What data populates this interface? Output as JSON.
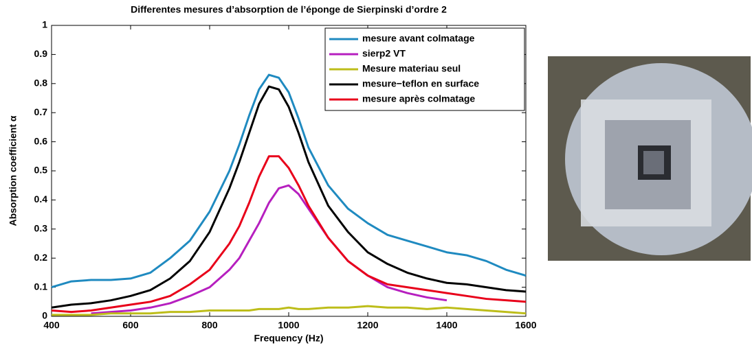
{
  "chart_data": {
    "type": "line",
    "title": "Differentes mesures d’absorption de l’éponge de Sierpinski d’ordre 2",
    "x_label": "Frequency (Hz)",
    "y_label": "Absorption coefficient  α",
    "x": [
      400,
      450,
      500,
      550,
      600,
      650,
      700,
      750,
      800,
      850,
      875,
      900,
      925,
      950,
      975,
      1000,
      1025,
      1050,
      1100,
      1150,
      1200,
      1250,
      1300,
      1350,
      1400,
      1450,
      1500,
      1550,
      1600
    ],
    "series": [
      {
        "name": "mesure avant colmatage",
        "color": "#1f8ac0",
        "values": [
          0.1,
          0.12,
          0.125,
          0.125,
          0.13,
          0.15,
          0.2,
          0.26,
          0.36,
          0.5,
          0.59,
          0.69,
          0.78,
          0.83,
          0.82,
          0.77,
          0.68,
          0.58,
          0.45,
          0.37,
          0.32,
          0.28,
          0.26,
          0.24,
          0.22,
          0.21,
          0.19,
          0.16,
          0.14
        ]
      },
      {
        "name": "sierp2 VT",
        "color": "#b61fbf",
        "values": [
          null,
          null,
          0.01,
          0.015,
          0.02,
          0.03,
          0.045,
          0.07,
          0.1,
          0.16,
          0.2,
          0.26,
          0.32,
          0.39,
          0.44,
          0.45,
          0.42,
          0.37,
          0.27,
          0.19,
          0.14,
          0.1,
          0.08,
          0.065,
          0.055,
          null,
          null,
          null,
          null
        ]
      },
      {
        "name": "Mesure materiau seul",
        "color": "#bdbd1a",
        "values": [
          0.005,
          0.005,
          0.005,
          0.01,
          0.01,
          0.01,
          0.015,
          0.015,
          0.02,
          0.02,
          0.02,
          0.02,
          0.025,
          0.025,
          0.025,
          0.03,
          0.025,
          0.025,
          0.03,
          0.03,
          0.035,
          0.03,
          0.03,
          0.025,
          0.03,
          0.025,
          0.02,
          0.015,
          0.01
        ]
      },
      {
        "name": "mesure−teflon en surface",
        "color": "#000000",
        "values": [
          0.03,
          0.04,
          0.045,
          0.055,
          0.07,
          0.09,
          0.13,
          0.19,
          0.29,
          0.44,
          0.53,
          0.63,
          0.73,
          0.79,
          0.78,
          0.72,
          0.63,
          0.53,
          0.38,
          0.29,
          0.22,
          0.18,
          0.15,
          0.13,
          0.115,
          0.11,
          0.1,
          0.09,
          0.085
        ]
      },
      {
        "name": "mesure après colmatage",
        "color": "#e8001a",
        "values": [
          0.02,
          0.015,
          0.02,
          0.03,
          0.04,
          0.05,
          0.07,
          0.11,
          0.16,
          0.25,
          0.31,
          0.39,
          0.48,
          0.55,
          0.55,
          0.51,
          0.45,
          0.38,
          0.27,
          0.19,
          0.14,
          0.11,
          0.1,
          0.09,
          0.08,
          0.07,
          0.06,
          0.055,
          0.05
        ]
      }
    ],
    "xlim": [
      400,
      1600
    ],
    "xticks": [
      400,
      600,
      800,
      1000,
      1200,
      1400,
      1600
    ],
    "ylim": [
      0,
      1
    ],
    "yticks": [
      0,
      0.1,
      0.2,
      0.3,
      0.4,
      0.5,
      0.6,
      0.7,
      0.8,
      0.9,
      1
    ],
    "legend": "upper right"
  }
}
